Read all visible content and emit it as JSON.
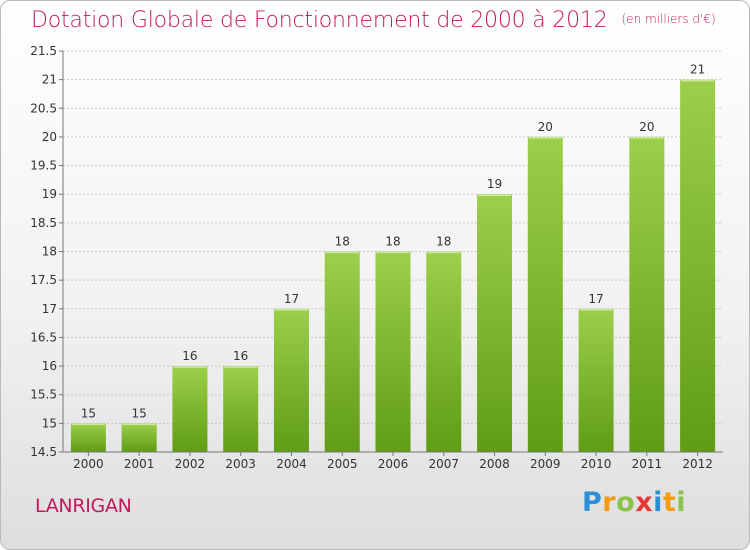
{
  "title": "Dotation Globale de Fonctionnement de 2000 à 2012",
  "subtitle": "(en milliers d'€)",
  "commune": "LANRIGAN",
  "logo": {
    "letters": [
      "P",
      "r",
      "o",
      "x",
      "i",
      "t",
      "i"
    ],
    "colors": [
      "#2b8fd6",
      "#f39c12",
      "#8bc34a",
      "#e53935",
      "#2b8fd6",
      "#f39c12",
      "#8bc34a"
    ]
  },
  "chart_data": {
    "type": "bar",
    "categories": [
      "2000",
      "2001",
      "2002",
      "2003",
      "2004",
      "2005",
      "2006",
      "2007",
      "2008",
      "2009",
      "2010",
      "2011",
      "2012"
    ],
    "values": [
      15,
      15,
      16,
      16,
      17,
      18,
      18,
      18,
      19,
      20,
      17,
      20,
      21
    ],
    "data_labels": [
      "15",
      "15",
      "16",
      "16",
      "17",
      "18",
      "18",
      "18",
      "19",
      "20",
      "17",
      "20",
      "21"
    ],
    "ylim": [
      14.5,
      21.5
    ],
    "yticks": [
      14.5,
      15,
      15.5,
      16,
      16.5,
      17,
      17.5,
      18,
      18.5,
      19,
      19.5,
      20,
      20.5,
      21,
      21.5
    ],
    "ytick_labels": [
      "14.5",
      "15",
      "15.5",
      "16",
      "16.5",
      "17",
      "17.5",
      "18",
      "18.5",
      "19",
      "19.5",
      "20",
      "20.5",
      "21",
      "21.5"
    ],
    "grid": true,
    "bar_color_top": "#9ccf4a",
    "bar_color_bottom": "#5f9d14",
    "label_color": "#333333"
  }
}
